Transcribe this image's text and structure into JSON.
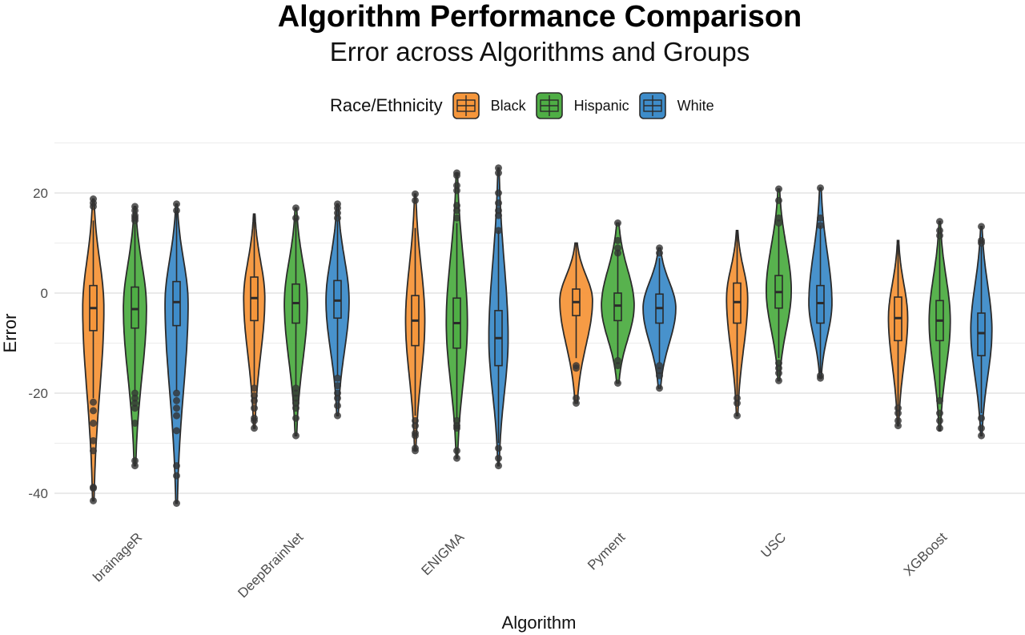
{
  "chart_data": {
    "type": "violin",
    "title": "Algorithm Performance Comparison",
    "subtitle": "Error across Algorithms and Groups",
    "xlabel": "Algorithm",
    "ylabel": "Error",
    "legend_title": "Race/Ethnicity",
    "legend_position": "top",
    "grid": true,
    "ylim": [
      -43,
      27
    ],
    "yticks": [
      "20",
      "0",
      "-20",
      "-40"
    ],
    "categories": [
      "brainageR",
      "DeepBrainNet",
      "ENIGMA",
      "Pyment",
      "USC",
      "XGBoost"
    ],
    "series": [
      {
        "name": "Black",
        "color": "#F5963B",
        "groups": [
          {
            "min": -41.5,
            "max": 18.8,
            "q1": -7.5,
            "median": -3.0,
            "q3": 1.5,
            "whisker_low": -21.0,
            "whisker_high": 14.5,
            "peak": -3.0,
            "width": 0.55,
            "outliers": [
              18.8,
              18.0,
              17.3,
              -21.8,
              -23.5,
              -26.0,
              -29.5,
              -31.5,
              -38.8,
              -39.0,
              -41.5
            ]
          },
          {
            "min": -27.0,
            "max": 15.8,
            "q1": -5.5,
            "median": -1.0,
            "q3": 3.2,
            "whisker_low": -18.5,
            "whisker_high": 15.8,
            "peak": -1.0,
            "width": 0.55,
            "outliers": [
              -19.0,
              -20.5,
              -21.5,
              -23.0,
              -25.0,
              -25.5,
              -27.0
            ]
          },
          {
            "min": -31.5,
            "max": 19.8,
            "q1": -10.5,
            "median": -5.5,
            "q3": -0.5,
            "whisker_low": -24.5,
            "whisker_high": 13.0,
            "peak": -5.5,
            "width": 0.5,
            "outliers": [
              19.8,
              18.5,
              -25.5,
              -26.5,
              -28.0,
              -28.5,
              -31.0,
              -31.5
            ]
          },
          {
            "min": -22.0,
            "max": 10.0,
            "q1": -4.5,
            "median": -1.8,
            "q3": 0.8,
            "whisker_low": -13.0,
            "whisker_high": 10.0,
            "peak": -1.5,
            "width": 0.85,
            "outliers": [
              -14.5,
              -15.0,
              -21.0,
              -22.0
            ]
          },
          {
            "min": -24.5,
            "max": 12.5,
            "q1": -6.0,
            "median": -1.8,
            "q3": 2.0,
            "whisker_low": -20.5,
            "whisker_high": 12.5,
            "peak": -1.0,
            "width": 0.55,
            "outliers": [
              -21.0,
              -22.0,
              -24.5
            ]
          },
          {
            "min": -26.5,
            "max": 10.5,
            "q1": -9.5,
            "median": -5.0,
            "q3": -0.8,
            "whisker_low": -22.5,
            "whisker_high": 10.5,
            "peak": -5.0,
            "width": 0.5,
            "outliers": [
              -23.0,
              -24.0,
              -25.5,
              -26.5
            ]
          }
        ]
      },
      {
        "name": "Hispanic",
        "color": "#4FAE45",
        "groups": [
          {
            "min": -34.5,
            "max": 17.3,
            "q1": -7.0,
            "median": -3.2,
            "q3": 1.2,
            "whisker_low": -19.5,
            "whisker_high": 14.0,
            "peak": -3.0,
            "width": 0.6,
            "outliers": [
              17.3,
              16.5,
              15.5,
              15.0,
              14.5,
              -20.0,
              -21.0,
              -22.0,
              -23.0,
              -26.0,
              -33.5,
              -34.5
            ]
          },
          {
            "min": -28.5,
            "max": 17.0,
            "q1": -6.0,
            "median": -2.0,
            "q3": 1.8,
            "whisker_low": -18.5,
            "whisker_high": 15.0,
            "peak": -2.0,
            "width": 0.6,
            "outliers": [
              17.0,
              15.0,
              -19.0,
              -20.0,
              -21.0,
              -22.0,
              -23.0,
              -25.0,
              -28.5
            ]
          },
          {
            "min": -33.0,
            "max": 24.0,
            "q1": -11.0,
            "median": -6.0,
            "q3": -1.0,
            "whisker_low": -25.0,
            "whisker_high": 14.0,
            "peak": -6.0,
            "width": 0.55,
            "outliers": [
              24.0,
              23.5,
              21.5,
              20.5,
              17.5,
              16.5,
              15.0,
              -25.5,
              -26.5,
              -27.0,
              -31.5,
              -33.0
            ]
          },
          {
            "min": -18.0,
            "max": 14.0,
            "q1": -5.5,
            "median": -2.5,
            "q3": 0.0,
            "whisker_low": -13.0,
            "whisker_high": 8.5,
            "peak": -2.5,
            "width": 0.85,
            "outliers": [
              14.0,
              10.5,
              9.0,
              8.0,
              -13.5,
              -14.5,
              -18.0
            ]
          },
          {
            "min": -17.5,
            "max": 20.8,
            "q1": -3.0,
            "median": 0.2,
            "q3": 3.5,
            "whisker_low": -13.0,
            "whisker_high": 13.5,
            "peak": 0.5,
            "width": 0.65,
            "outliers": [
              20.8,
              18.5,
              15.0,
              14.0,
              -14.0,
              -15.0,
              -16.0,
              -17.5
            ]
          },
          {
            "min": -27.5,
            "max": 14.3,
            "q1": -9.5,
            "median": -5.5,
            "q3": -1.5,
            "whisker_low": -21.0,
            "whisker_high": 11.0,
            "peak": -5.5,
            "width": 0.55,
            "outliers": [
              14.3,
              12.5,
              11.5,
              -21.5,
              -24.0,
              -25.5,
              -27.0
            ]
          }
        ]
      },
      {
        "name": "White",
        "color": "#3E8CC9",
        "groups": [
          {
            "min": -42.0,
            "max": 17.8,
            "q1": -6.5,
            "median": -1.8,
            "q3": 2.3,
            "whisker_low": -19.5,
            "whisker_high": 16.5,
            "peak": -2.0,
            "width": 0.6,
            "outliers": [
              17.8,
              16.5,
              -20.0,
              -21.5,
              -23.0,
              -24.5,
              -27.5,
              -34.5,
              -36.5,
              -42.0
            ]
          },
          {
            "min": -24.5,
            "max": 17.8,
            "q1": -5.0,
            "median": -1.5,
            "q3": 2.5,
            "whisker_low": -16.5,
            "whisker_high": 14.5,
            "peak": -1.5,
            "width": 0.6,
            "outliers": [
              17.8,
              17.0,
              16.0,
              15.0,
              -17.0,
              -18.5,
              -20.0,
              -21.0,
              -22.5,
              -24.5
            ]
          },
          {
            "min": -34.5,
            "max": 25.0,
            "q1": -14.5,
            "median": -9.0,
            "q3": -3.5,
            "whisker_low": -30.0,
            "whisker_high": 12.5,
            "peak": -9.0,
            "width": 0.5,
            "outliers": [
              25.0,
              24.0,
              20.0,
              18.0,
              16.5,
              15.5,
              12.5,
              -31.0,
              -33.0,
              -34.5
            ]
          },
          {
            "min": -19.0,
            "max": 9.0,
            "q1": -6.0,
            "median": -3.0,
            "q3": -0.2,
            "whisker_low": -14.0,
            "whisker_high": 7.0,
            "peak": -3.0,
            "width": 0.85,
            "outliers": [
              9.0,
              8.0,
              -14.5,
              -15.5,
              -16.5,
              -19.0
            ]
          },
          {
            "min": -17.0,
            "max": 21.0,
            "q1": -6.0,
            "median": -2.0,
            "q3": 1.5,
            "whisker_low": -16.0,
            "whisker_high": 13.5,
            "peak": -2.0,
            "width": 0.6,
            "outliers": [
              21.0,
              15.0,
              13.5,
              -16.5,
              -17.0
            ]
          },
          {
            "min": -28.5,
            "max": 13.3,
            "q1": -12.5,
            "median": -8.0,
            "q3": -4.0,
            "whisker_low": -24.0,
            "whisker_high": 9.5,
            "peak": -7.5,
            "width": 0.55,
            "outliers": [
              13.3,
              10.5,
              10.0,
              -25.0,
              -27.0,
              -28.5
            ]
          }
        ]
      }
    ]
  }
}
